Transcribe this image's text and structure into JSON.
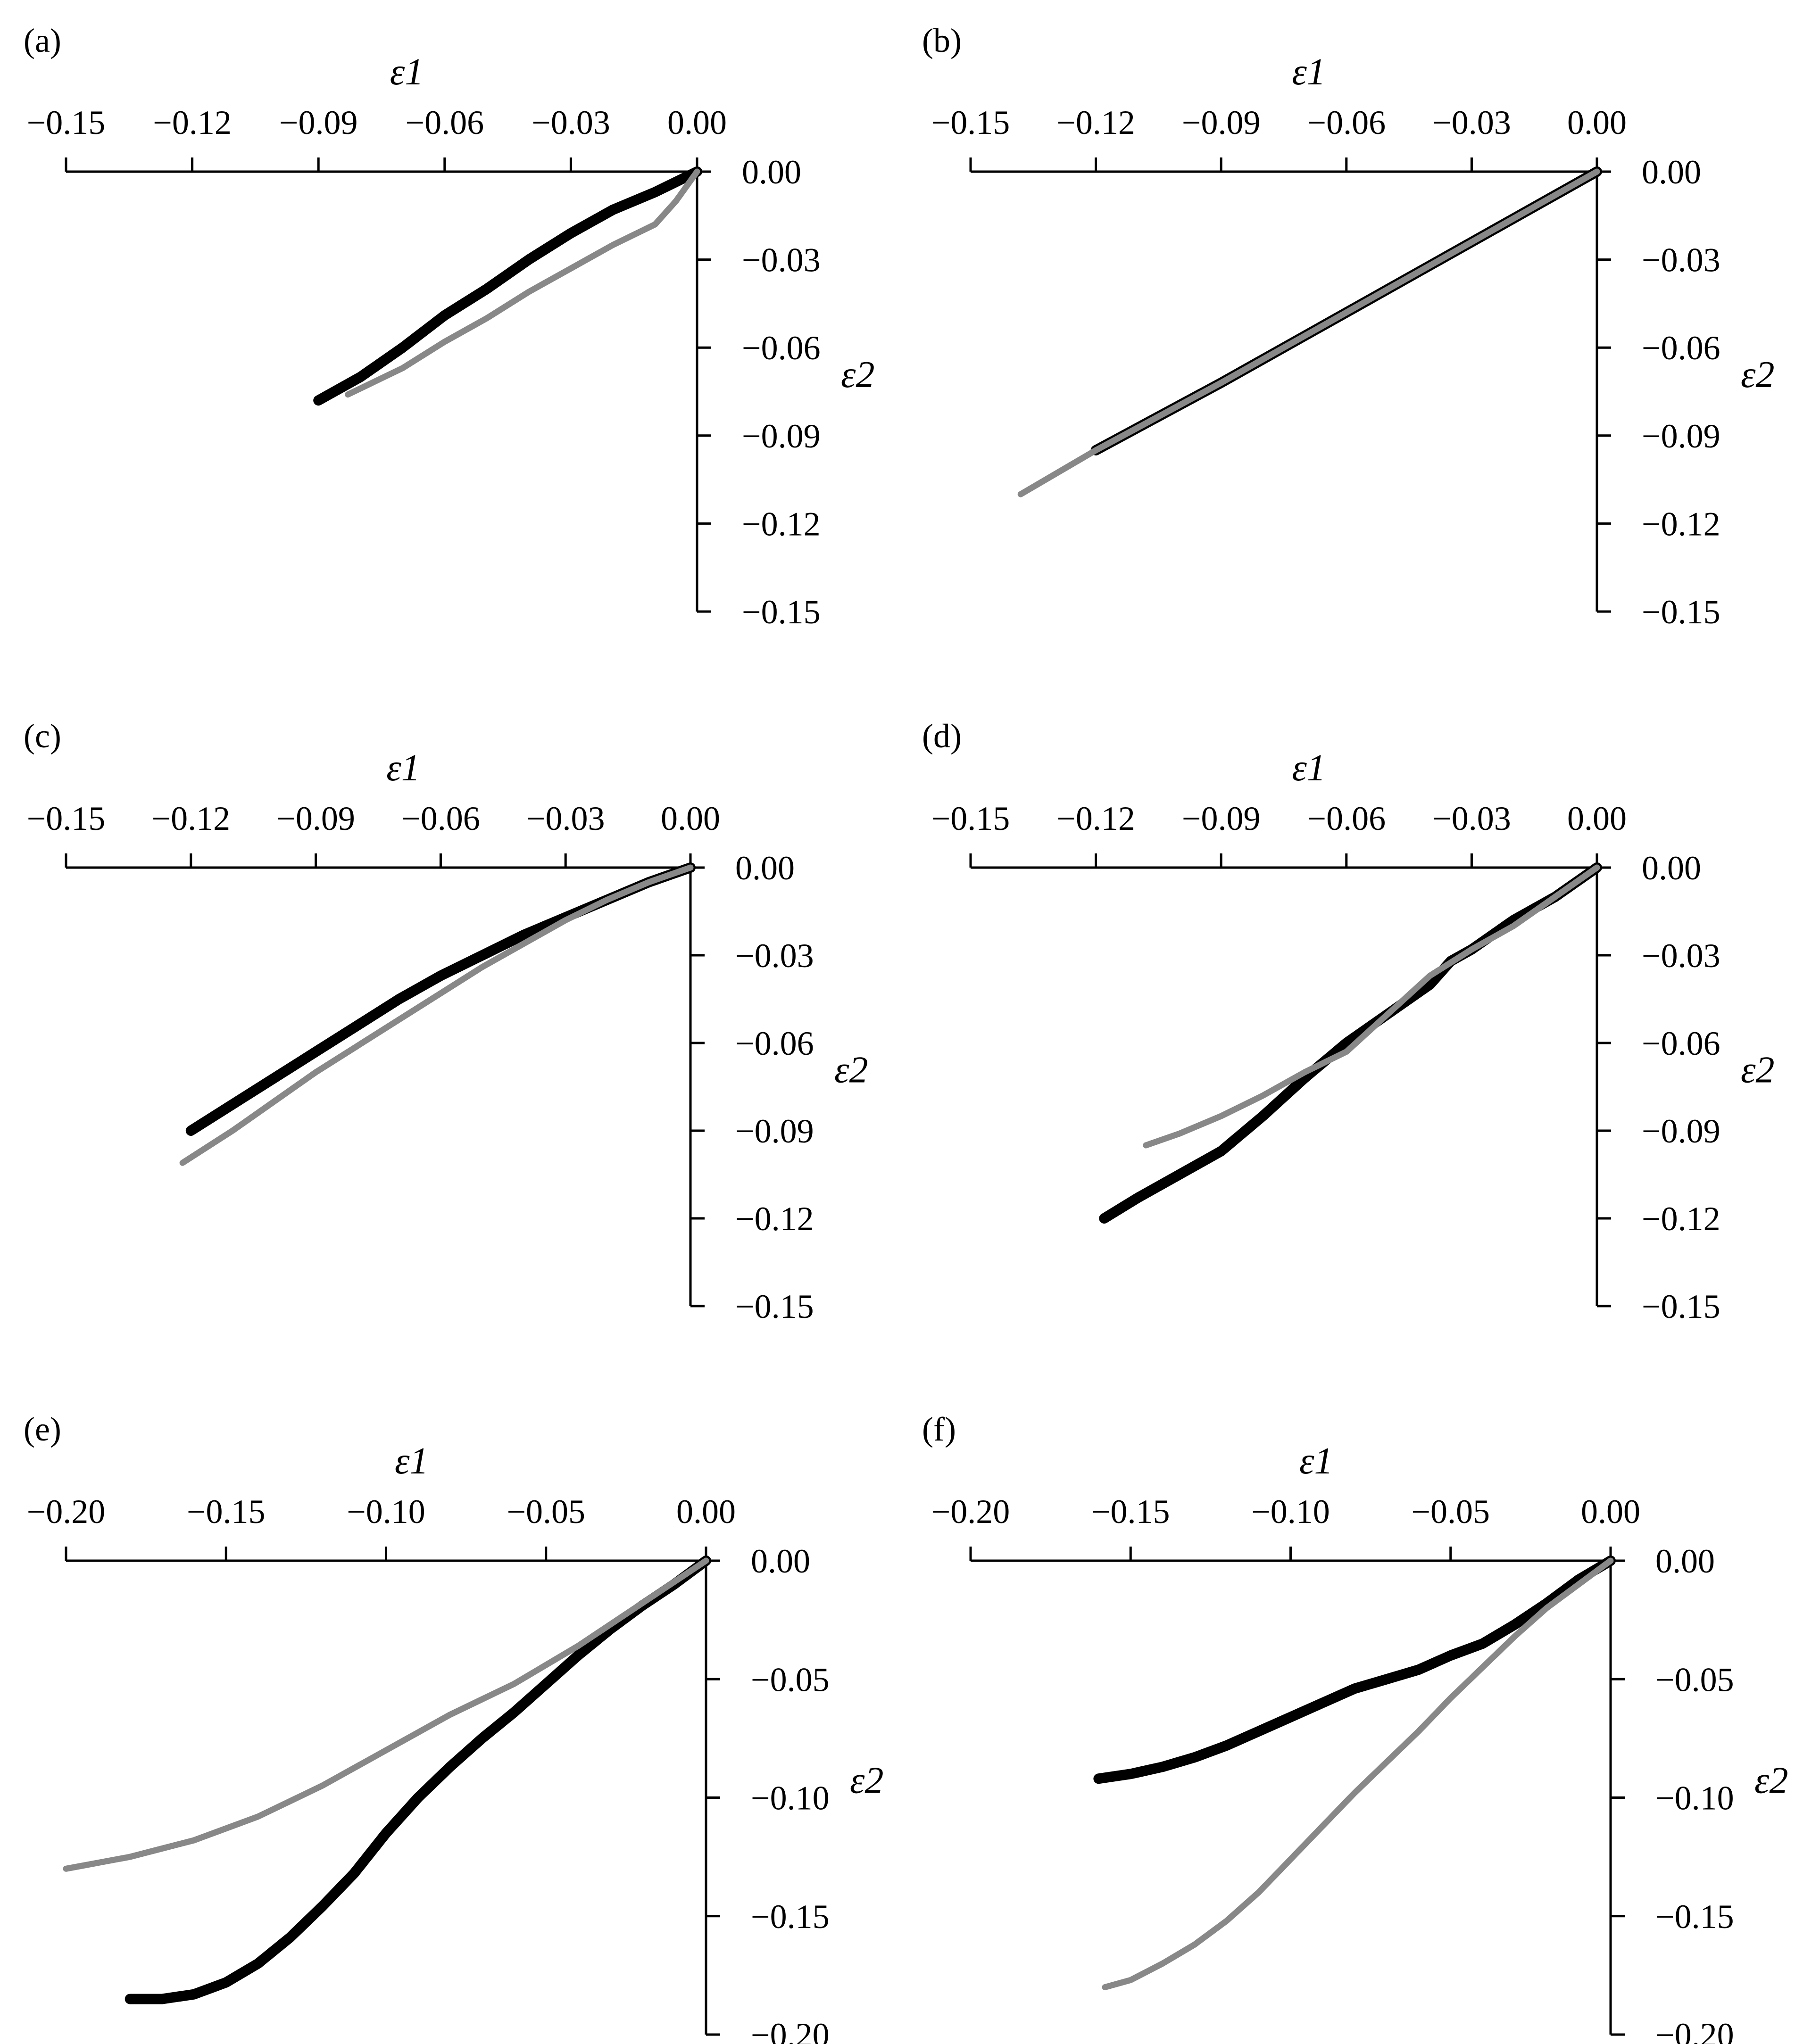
{
  "chart_data": [
    {
      "panel": "(a)",
      "type": "line",
      "xlabel": "ε1",
      "ylabel": "ε2",
      "xlim": [
        -0.15,
        0.0
      ],
      "ylim": [
        -0.15,
        0.0
      ],
      "xticks": [
        -0.15,
        -0.12,
        -0.09,
        -0.06,
        -0.03,
        0.0
      ],
      "yticks": [
        0.0,
        -0.03,
        -0.06,
        -0.09,
        -0.12,
        -0.15
      ],
      "xtick_labels": [
        "−0.15",
        "−0.12",
        "−0.09",
        "−0.06",
        "−0.03",
        "0.00"
      ],
      "ytick_labels": [
        "0.00",
        "−0.03",
        "−0.06",
        "−0.09",
        "−0.12",
        "−0.15"
      ],
      "series": [
        {
          "name": "black",
          "color": "#000000",
          "points": [
            [
              0.0,
              0.0
            ],
            [
              -0.01,
              -0.007
            ],
            [
              -0.02,
              -0.013
            ],
            [
              -0.03,
              -0.021
            ],
            [
              -0.04,
              -0.03
            ],
            [
              -0.05,
              -0.04
            ],
            [
              -0.06,
              -0.049
            ],
            [
              -0.07,
              -0.06
            ],
            [
              -0.08,
              -0.07
            ],
            [
              -0.09,
              -0.078
            ]
          ]
        },
        {
          "name": "gray",
          "color": "#888888",
          "points": [
            [
              0.0,
              0.0
            ],
            [
              -0.005,
              -0.01
            ],
            [
              -0.01,
              -0.018
            ],
            [
              -0.02,
              -0.025
            ],
            [
              -0.03,
              -0.033
            ],
            [
              -0.04,
              -0.041
            ],
            [
              -0.05,
              -0.05
            ],
            [
              -0.06,
              -0.058
            ],
            [
              -0.07,
              -0.067
            ],
            [
              -0.083,
              -0.076
            ]
          ]
        }
      ]
    },
    {
      "panel": "(b)",
      "type": "line",
      "xlabel": "ε1",
      "ylabel": "ε2",
      "xlim": [
        -0.15,
        0.0
      ],
      "ylim": [
        -0.15,
        0.0
      ],
      "xticks": [
        -0.15,
        -0.12,
        -0.09,
        -0.06,
        -0.03,
        0.0
      ],
      "yticks": [
        0.0,
        -0.03,
        -0.06,
        -0.09,
        -0.12,
        -0.15
      ],
      "xtick_labels": [
        "−0.15",
        "−0.12",
        "−0.09",
        "−0.06",
        "−0.03",
        "0.00"
      ],
      "ytick_labels": [
        "0.00",
        "−0.03",
        "−0.06",
        "−0.09",
        "−0.12",
        "−0.15"
      ],
      "series": [
        {
          "name": "black",
          "color": "#000000",
          "points": [
            [
              0.0,
              0.0
            ],
            [
              -0.03,
              -0.024
            ],
            [
              -0.06,
              -0.048
            ],
            [
              -0.09,
              -0.072
            ],
            [
              -0.12,
              -0.095
            ]
          ]
        },
        {
          "name": "gray",
          "color": "#888888",
          "points": [
            [
              0.0,
              0.0
            ],
            [
              -0.03,
              -0.024
            ],
            [
              -0.06,
              -0.048
            ],
            [
              -0.09,
              -0.072
            ],
            [
              -0.12,
              -0.095
            ],
            [
              -0.138,
              -0.11
            ]
          ]
        }
      ]
    },
    {
      "panel": "(c)",
      "type": "line",
      "xlabel": "ε1",
      "ylabel": "ε2",
      "xlim": [
        -0.15,
        0.0
      ],
      "ylim": [
        -0.15,
        0.0
      ],
      "xticks": [
        -0.15,
        -0.12,
        -0.09,
        -0.06,
        -0.03,
        0.0
      ],
      "yticks": [
        0.0,
        -0.03,
        -0.06,
        -0.09,
        -0.12,
        -0.15
      ],
      "xtick_labels": [
        "−0.15",
        "−0.12",
        "−0.09",
        "−0.06",
        "−0.03",
        "0.00"
      ],
      "ytick_labels": [
        "0.00",
        "−0.03",
        "−0.06",
        "−0.09",
        "−0.12",
        "−0.15"
      ],
      "series": [
        {
          "name": "black",
          "color": "#000000",
          "points": [
            [
              0.0,
              0.0
            ],
            [
              -0.01,
              -0.005
            ],
            [
              -0.02,
              -0.011
            ],
            [
              -0.03,
              -0.017
            ],
            [
              -0.04,
              -0.023
            ],
            [
              -0.05,
              -0.03
            ],
            [
              -0.06,
              -0.037
            ],
            [
              -0.07,
              -0.045
            ],
            [
              -0.08,
              -0.054
            ],
            [
              -0.09,
              -0.063
            ],
            [
              -0.1,
              -0.072
            ],
            [
              -0.11,
              -0.081
            ],
            [
              -0.12,
              -0.09
            ]
          ]
        },
        {
          "name": "gray",
          "color": "#888888",
          "points": [
            [
              0.0,
              0.0
            ],
            [
              -0.01,
              -0.005
            ],
            [
              -0.02,
              -0.011
            ],
            [
              -0.03,
              -0.018
            ],
            [
              -0.04,
              -0.026
            ],
            [
              -0.05,
              -0.034
            ],
            [
              -0.06,
              -0.043
            ],
            [
              -0.07,
              -0.052
            ],
            [
              -0.08,
              -0.061
            ],
            [
              -0.09,
              -0.07
            ],
            [
              -0.1,
              -0.08
            ],
            [
              -0.11,
              -0.09
            ],
            [
              -0.122,
              -0.101
            ]
          ]
        }
      ]
    },
    {
      "panel": "(d)",
      "type": "line",
      "xlabel": "ε1",
      "ylabel": "ε2",
      "xlim": [
        -0.15,
        0.0
      ],
      "ylim": [
        -0.15,
        0.0
      ],
      "xticks": [
        -0.15,
        -0.12,
        -0.09,
        -0.06,
        -0.03,
        0.0
      ],
      "yticks": [
        0.0,
        -0.03,
        -0.06,
        -0.09,
        -0.12,
        -0.15
      ],
      "xtick_labels": [
        "−0.15",
        "−0.12",
        "−0.09",
        "−0.06",
        "−0.03",
        "0.00"
      ],
      "ytick_labels": [
        "0.00",
        "−0.03",
        "−0.06",
        "−0.09",
        "−0.12",
        "−0.15"
      ],
      "series": [
        {
          "name": "black",
          "color": "#000000",
          "points": [
            [
              0.0,
              0.0
            ],
            [
              -0.01,
              -0.01
            ],
            [
              -0.02,
              -0.018
            ],
            [
              -0.03,
              -0.028
            ],
            [
              -0.035,
              -0.032
            ],
            [
              -0.04,
              -0.04
            ],
            [
              -0.05,
              -0.05
            ],
            [
              -0.06,
              -0.06
            ],
            [
              -0.07,
              -0.072
            ],
            [
              -0.08,
              -0.085
            ],
            [
              -0.09,
              -0.097
            ],
            [
              -0.1,
              -0.105
            ],
            [
              -0.11,
              -0.113
            ],
            [
              -0.118,
              -0.12
            ]
          ]
        },
        {
          "name": "gray",
          "color": "#888888",
          "points": [
            [
              0.0,
              0.0
            ],
            [
              -0.01,
              -0.01
            ],
            [
              -0.02,
              -0.02
            ],
            [
              -0.03,
              -0.028
            ],
            [
              -0.04,
              -0.037
            ],
            [
              -0.05,
              -0.05
            ],
            [
              -0.06,
              -0.063
            ],
            [
              -0.07,
              -0.07
            ],
            [
              -0.08,
              -0.078
            ],
            [
              -0.09,
              -0.085
            ],
            [
              -0.1,
              -0.091
            ],
            [
              -0.108,
              -0.095
            ]
          ]
        }
      ]
    },
    {
      "panel": "(e)",
      "type": "line",
      "xlabel": "ε1",
      "ylabel": "ε2",
      "xlim": [
        -0.2,
        0.0
      ],
      "ylim": [
        -0.2,
        0.0
      ],
      "xticks": [
        -0.2,
        -0.15,
        -0.1,
        -0.05,
        0.0
      ],
      "yticks": [
        0.0,
        -0.05,
        -0.1,
        -0.15,
        -0.2
      ],
      "xtick_labels": [
        "−0.20",
        "−0.15",
        "−0.10",
        "−0.05",
        "0.00"
      ],
      "ytick_labels": [
        "0.00",
        "−0.05",
        "−0.10",
        "−0.15",
        "−0.20"
      ],
      "series": [
        {
          "name": "black",
          "color": "#000000",
          "points": [
            [
              0.0,
              0.0
            ],
            [
              -0.01,
              -0.01
            ],
            [
              -0.02,
              -0.019
            ],
            [
              -0.03,
              -0.029
            ],
            [
              -0.04,
              -0.04
            ],
            [
              -0.05,
              -0.052
            ],
            [
              -0.06,
              -0.064
            ],
            [
              -0.07,
              -0.075
            ],
            [
              -0.08,
              -0.087
            ],
            [
              -0.09,
              -0.1
            ],
            [
              -0.1,
              -0.115
            ],
            [
              -0.11,
              -0.132
            ],
            [
              -0.12,
              -0.146
            ],
            [
              -0.13,
              -0.159
            ],
            [
              -0.14,
              -0.17
            ],
            [
              -0.15,
              -0.178
            ],
            [
              -0.16,
              -0.183
            ],
            [
              -0.17,
              -0.185
            ],
            [
              -0.18,
              -0.185
            ]
          ]
        },
        {
          "name": "gray",
          "color": "#888888",
          "points": [
            [
              0.0,
              0.0
            ],
            [
              -0.02,
              -0.018
            ],
            [
              -0.04,
              -0.036
            ],
            [
              -0.06,
              -0.052
            ],
            [
              -0.08,
              -0.065
            ],
            [
              -0.1,
              -0.08
            ],
            [
              -0.12,
              -0.095
            ],
            [
              -0.14,
              -0.108
            ],
            [
              -0.16,
              -0.118
            ],
            [
              -0.18,
              -0.125
            ],
            [
              -0.2,
              -0.13
            ]
          ]
        }
      ]
    },
    {
      "panel": "(f)",
      "type": "line",
      "xlabel": "ε1",
      "ylabel": "ε2",
      "xlim": [
        -0.2,
        0.0
      ],
      "ylim": [
        -0.2,
        0.0
      ],
      "xticks": [
        -0.2,
        -0.15,
        -0.1,
        -0.05,
        0.0
      ],
      "yticks": [
        0.0,
        -0.05,
        -0.1,
        -0.15,
        -0.2
      ],
      "xtick_labels": [
        "−0.20",
        "−0.15",
        "−0.10",
        "−0.05",
        "0.00"
      ],
      "ytick_labels": [
        "0.00",
        "−0.05",
        "−0.10",
        "−0.15",
        "−0.20"
      ],
      "series": [
        {
          "name": "black",
          "color": "#000000",
          "points": [
            [
              0.0,
              0.0
            ],
            [
              -0.01,
              -0.008
            ],
            [
              -0.02,
              -0.018
            ],
            [
              -0.03,
              -0.027
            ],
            [
              -0.04,
              -0.035
            ],
            [
              -0.05,
              -0.04
            ],
            [
              -0.06,
              -0.046
            ],
            [
              -0.07,
              -0.05
            ],
            [
              -0.08,
              -0.054
            ],
            [
              -0.09,
              -0.06
            ],
            [
              -0.1,
              -0.066
            ],
            [
              -0.11,
              -0.072
            ],
            [
              -0.12,
              -0.078
            ],
            [
              -0.13,
              -0.083
            ],
            [
              -0.14,
              -0.087
            ],
            [
              -0.15,
              -0.09
            ],
            [
              -0.16,
              -0.092
            ]
          ]
        },
        {
          "name": "gray",
          "color": "#888888",
          "points": [
            [
              0.0,
              0.0
            ],
            [
              -0.01,
              -0.01
            ],
            [
              -0.02,
              -0.02
            ],
            [
              -0.03,
              -0.032
            ],
            [
              -0.04,
              -0.045
            ],
            [
              -0.05,
              -0.058
            ],
            [
              -0.06,
              -0.072
            ],
            [
              -0.07,
              -0.085
            ],
            [
              -0.08,
              -0.098
            ],
            [
              -0.09,
              -0.112
            ],
            [
              -0.1,
              -0.126
            ],
            [
              -0.11,
              -0.14
            ],
            [
              -0.12,
              -0.152
            ],
            [
              -0.13,
              -0.162
            ],
            [
              -0.14,
              -0.17
            ],
            [
              -0.15,
              -0.177
            ],
            [
              -0.158,
              -0.18
            ]
          ]
        }
      ]
    }
  ]
}
